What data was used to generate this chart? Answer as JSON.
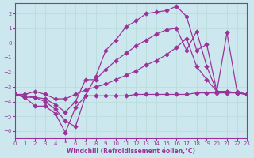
{
  "line1_x": [
    0,
    1,
    2,
    3,
    4,
    5,
    6,
    7,
    8,
    9,
    10,
    11,
    12,
    13,
    14,
    15,
    16,
    17,
    18,
    19,
    20,
    21,
    22,
    23
  ],
  "line1_y": [
    -3.5,
    -3.7,
    -4.3,
    -4.3,
    -4.8,
    -6.1,
    -4.4,
    -3.6,
    -3.6,
    -3.6,
    -3.6,
    -3.6,
    -3.5,
    -3.5,
    -3.5,
    -3.5,
    -3.5,
    -3.5,
    -3.4,
    -3.4,
    -3.4,
    -3.4,
    -3.4,
    -3.5
  ],
  "line2_x": [
    0,
    1,
    2,
    3,
    4,
    5,
    6,
    7,
    8,
    9,
    10,
    11,
    12,
    13,
    14,
    15,
    16,
    17,
    18,
    19,
    20,
    21,
    22,
    23
  ],
  "line2_y": [
    -3.5,
    -3.7,
    -3.7,
    -3.8,
    -4.2,
    -4.7,
    -4.0,
    -2.5,
    -2.5,
    -1.8,
    -1.2,
    -0.7,
    -0.2,
    0.2,
    0.6,
    0.9,
    1.0,
    -0.5,
    0.8,
    -1.6,
    -3.3,
    -3.3,
    -3.4,
    -3.5
  ],
  "line3_x": [
    0,
    1,
    2,
    3,
    4,
    5,
    6,
    7,
    8,
    9,
    10,
    11,
    12,
    13,
    14,
    15,
    16,
    17,
    18,
    19,
    20,
    21,
    22,
    23
  ],
  "line3_y": [
    -3.5,
    -3.5,
    -3.3,
    -3.5,
    -3.8,
    -3.8,
    -3.5,
    -3.2,
    -3.0,
    -2.8,
    -2.5,
    -2.2,
    -1.9,
    -1.5,
    -1.2,
    -0.8,
    -0.3,
    0.3,
    -1.6,
    -2.5,
    -3.3,
    -3.3,
    -3.4,
    -3.5
  ],
  "line4_x": [
    0,
    2,
    3,
    4,
    5,
    6,
    7,
    8,
    9,
    10,
    11,
    12,
    13,
    14,
    15,
    16,
    17,
    18,
    19,
    20,
    21,
    22,
    23
  ],
  "line4_y": [
    -3.5,
    -3.7,
    -4.0,
    -4.5,
    -5.3,
    -5.7,
    -3.6,
    -2.3,
    -0.5,
    0.2,
    1.1,
    1.5,
    2.0,
    2.1,
    2.2,
    2.5,
    1.8,
    -0.5,
    -0.1,
    -3.3,
    0.7,
    -3.3,
    -3.5
  ],
  "color": "#993399",
  "bgcolor": "#cce8ee",
  "grid_color": "#aadddd",
  "xlabel": "Windchill (Refroidissement éolien,°C)",
  "xlim": [
    0,
    23
  ],
  "ylim": [
    -6.5,
    2.7
  ],
  "yticks": [
    -6,
    -5,
    -4,
    -3,
    -2,
    -1,
    0,
    1,
    2
  ],
  "xticks": [
    0,
    1,
    2,
    3,
    4,
    5,
    6,
    7,
    8,
    9,
    10,
    11,
    12,
    13,
    14,
    15,
    16,
    17,
    18,
    19,
    20,
    21,
    22,
    23
  ]
}
